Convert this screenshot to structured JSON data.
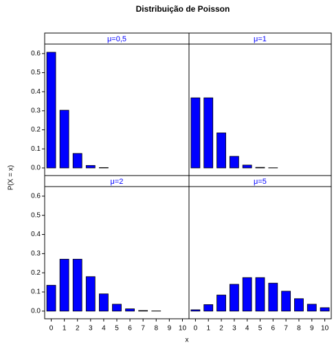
{
  "chart_data": {
    "type": "bar",
    "title": "Distribuição de Poisson",
    "xlabel": "x",
    "ylabel": "P(X = x)",
    "categories": [
      "0",
      "1",
      "2",
      "3",
      "4",
      "5",
      "6",
      "7",
      "8",
      "9",
      "10"
    ],
    "ylim": [
      -0.04,
      0.65
    ],
    "yticks": [
      {
        "value": 0,
        "label": "0.0"
      },
      0.1,
      0.2,
      0.3,
      0.4,
      0.5,
      0.6
    ],
    "color": "#0000ff",
    "panels": [
      {
        "title": "μ=0,5",
        "values": [
          0.607,
          0.303,
          0.076,
          0.013,
          0.002,
          0,
          0,
          0,
          0,
          0,
          0
        ]
      },
      {
        "title": "μ=1",
        "values": [
          0.368,
          0.368,
          0.184,
          0.061,
          0.015,
          0.003,
          0.001,
          0,
          0,
          0,
          0
        ]
      },
      {
        "title": "μ=2",
        "values": [
          0.135,
          0.271,
          0.271,
          0.18,
          0.09,
          0.036,
          0.012,
          0.003,
          0.001,
          0,
          0
        ]
      },
      {
        "title": "μ=5",
        "values": [
          0.007,
          0.034,
          0.084,
          0.14,
          0.175,
          0.175,
          0.146,
          0.104,
          0.065,
          0.036,
          0.018
        ]
      }
    ]
  }
}
